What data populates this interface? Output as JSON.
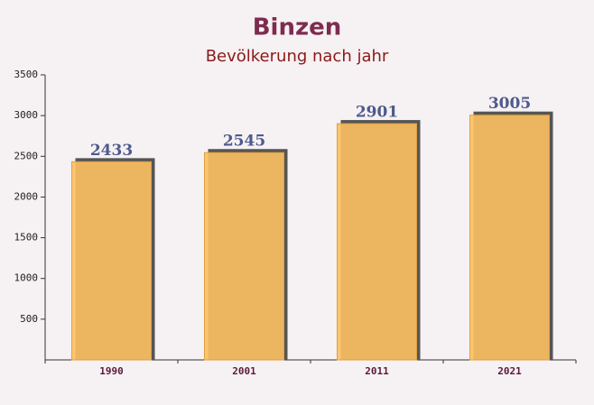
{
  "chart_data": {
    "type": "bar",
    "title": "Binzen",
    "subtitle": "Bevölkerung nach jahr",
    "categories": [
      "1990",
      "2001",
      "2011",
      "2021"
    ],
    "values": [
      2433,
      2545,
      2901,
      3005
    ],
    "color": "#fdc060",
    "value_label_color": "#4d5a8c",
    "ylim": [
      0,
      3500
    ],
    "yticks": [
      500,
      1000,
      1500,
      2000,
      2500,
      3000,
      3500
    ],
    "grid": false
  }
}
